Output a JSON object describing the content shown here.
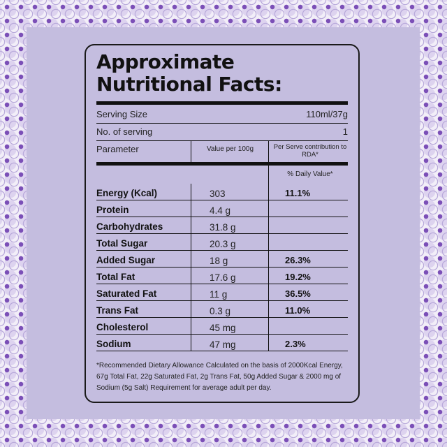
{
  "title_line1": "Approximate",
  "title_line2": "Nutritional Facts:",
  "serving_size_label": "Serving Size",
  "serving_size_value": "110ml/37g",
  "servings_label": "No. of serving",
  "servings_value": "1",
  "col_parameter": "Parameter",
  "col_value": "Value per 100g",
  "col_rda": "Per Serve contribution to RDA*",
  "daily_value_label": "% Daily Value*",
  "nutrients": [
    {
      "name": "Energy (Kcal)",
      "value": "303",
      "rda": "11.1%"
    },
    {
      "name": "Protein",
      "value": "4.4 g",
      "rda": ""
    },
    {
      "name": "Carbohydrates",
      "value": "31.8 g",
      "rda": ""
    },
    {
      "name": "Total Sugar",
      "value": "20.3 g",
      "rda": ""
    },
    {
      "name": "Added Sugar",
      "value": "18 g",
      "rda": "26.3%"
    },
    {
      "name": "Total Fat",
      "value": "17.6 g",
      "rda": "19.2%"
    },
    {
      "name": "Saturated Fat",
      "value": "11 g",
      "rda": "36.5%"
    },
    {
      "name": "Trans Fat",
      "value": "0.3 g",
      "rda": "11.0%"
    },
    {
      "name": "Cholesterol",
      "value": "45 mg",
      "rda": ""
    },
    {
      "name": "Sodium",
      "value": "47 mg",
      "rda": "2.3%"
    }
  ],
  "footnote": "*Recommended Dietary Allowance Calculated on the basis of 2000Kcal Energy, 67g Total Fat, 22g Saturated Fat, 2g Trans Fat, 50g Added Sugar & 2000 mg of Sodium (5g Salt) Requirement for average adult per day.",
  "colors": {
    "panel": "#c4bddf",
    "pattern_accent": "#7b4fb7",
    "ink": "#111111"
  }
}
